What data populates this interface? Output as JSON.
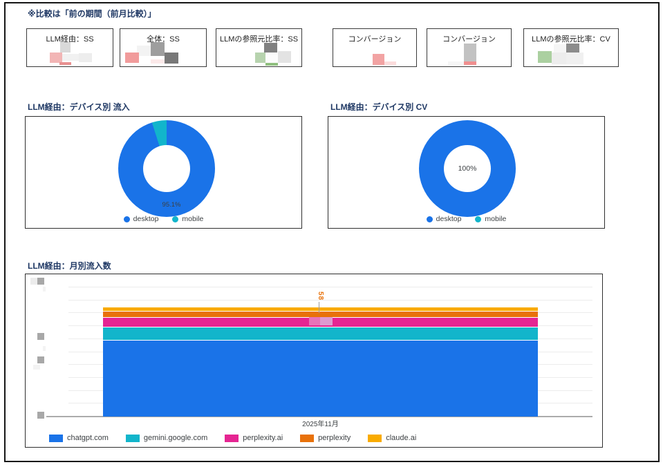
{
  "page": {
    "note": "※比較は「前の期間（前月比較）」"
  },
  "scorecards": [
    {
      "title": "LLM経由：SS",
      "value": "redacted"
    },
    {
      "title": "全体：SS",
      "value": "redacted"
    },
    {
      "title": "LLMの参照元比率：SS",
      "value": "redacted"
    },
    {
      "title": "コンバージョン",
      "value": "redacted"
    },
    {
      "title": "コンバージョン",
      "value": "redacted"
    },
    {
      "title": "LLMの参照元比率：CV",
      "value": "redacted"
    }
  ],
  "sections": {
    "device_inflow_title": "LLM経由：デバイス別 流入",
    "device_cv_title": "LLM経由：デバイス別 CV",
    "monthly_title": "LLM経由：月別流入数"
  },
  "chart_data": [
    {
      "type": "pie",
      "variant": "donut",
      "title": "LLM経由：デバイス別 流入",
      "labels": [
        "desktop",
        "mobile"
      ],
      "values": [
        95.1,
        4.9
      ],
      "colors": [
        "#1a73e8",
        "#12b5cb"
      ],
      "slice_label": "95.1%",
      "legend_position": "bottom"
    },
    {
      "type": "pie",
      "variant": "donut",
      "title": "LLM経由：デバイス別 CV",
      "labels": [
        "desktop",
        "mobile"
      ],
      "values": [
        100,
        0
      ],
      "colors": [
        "#1a73e8",
        "#12b5cb"
      ],
      "center_label": "100%",
      "legend_position": "bottom"
    },
    {
      "type": "bar",
      "stacked": true,
      "title": "LLM経由：月別流入数",
      "categories": [
        "2025年11月"
      ],
      "series": [
        {
          "name": "chatgpt.com",
          "color": "#1a73e8",
          "share_pct": 69.6
        },
        {
          "name": "gemini.google.com",
          "color": "#12b5cb",
          "share_pct": 12.0
        },
        {
          "name": "perplexity.ai",
          "color": "#e52592",
          "share_pct": 9.2
        },
        {
          "name": "perplexity",
          "color": "#e8710a",
          "share_pct": 5.4,
          "data_label": "58"
        },
        {
          "name": "claude.ai",
          "color": "#f9ab00",
          "share_pct": 3.8
        }
      ],
      "bar_label": "58",
      "y_axis_tick_labels": "redacted",
      "legend_position": "bottom"
    }
  ]
}
